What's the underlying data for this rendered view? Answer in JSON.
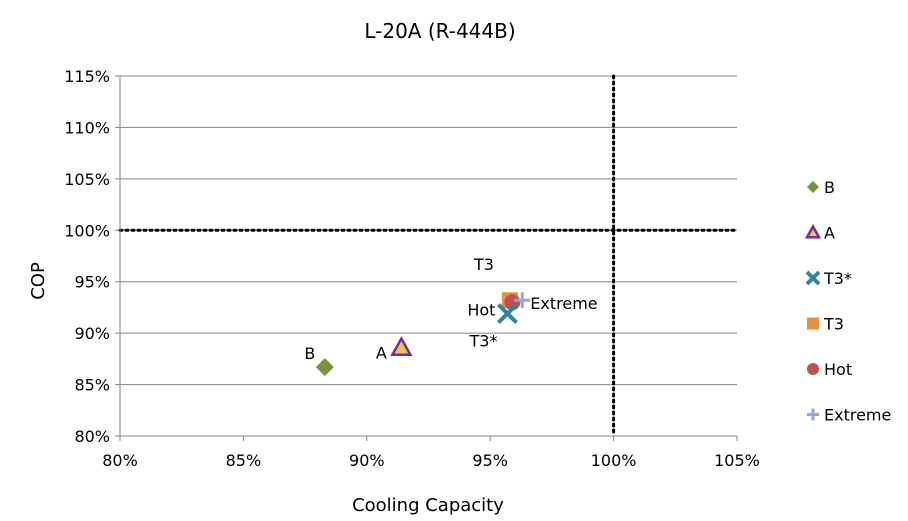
{
  "chart_data": {
    "type": "scatter",
    "title": "L-20A (R-444B)",
    "xlabel": "Cooling Capacity",
    "ylabel": "COP",
    "xlim": [
      0.8,
      1.05
    ],
    "ylim": [
      0.8,
      1.15
    ],
    "x_ticks": [
      "80%",
      "85%",
      "90%",
      "95%",
      "100%",
      "105%"
    ],
    "y_ticks": [
      "80%",
      "85%",
      "90%",
      "95%",
      "100%",
      "105%",
      "110%",
      "115%"
    ],
    "grid": "horizontal major gridlines",
    "reference_lines": {
      "x": 1.0,
      "y": 1.0,
      "style": "dotted"
    },
    "legend_position": "right",
    "series": [
      {
        "name": "B",
        "marker": "diamond",
        "color": "#77933c",
        "x": 0.883,
        "y": 0.867,
        "point_label": "B"
      },
      {
        "name": "A",
        "marker": "triangle",
        "color": "#f2c14e",
        "stroke": "#7030a0",
        "x": 0.914,
        "y": 0.886,
        "point_label": "A"
      },
      {
        "name": "T3*",
        "marker": "x",
        "color": "#31849b",
        "x": 0.957,
        "y": 0.919,
        "point_label": "T3*"
      },
      {
        "name": "T3",
        "marker": "square",
        "color": "#e7913f",
        "x": 0.958,
        "y": 0.932,
        "point_label": "T3"
      },
      {
        "name": "Hot",
        "marker": "circle",
        "color": "#c0504d",
        "x": 0.959,
        "y": 0.93,
        "point_label": "Hot"
      },
      {
        "name": "Extreme",
        "marker": "plus",
        "color": "#8ea9db",
        "x": 0.963,
        "y": 0.932,
        "point_label": "Extreme"
      }
    ]
  }
}
